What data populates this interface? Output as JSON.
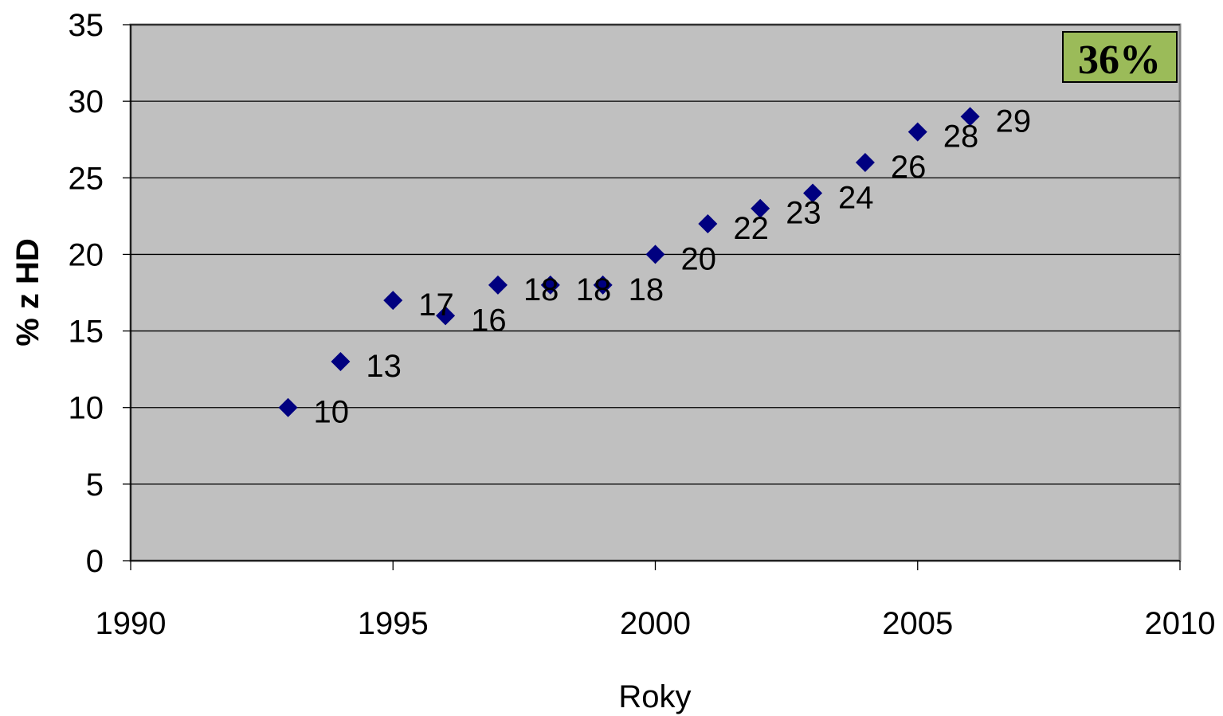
{
  "chart_data": {
    "type": "scatter",
    "title": "",
    "xlabel": "Roky",
    "ylabel": "% z HD",
    "xlim": [
      1990,
      2010
    ],
    "ylim": [
      0,
      35
    ],
    "x_ticks": [
      1990,
      1995,
      2000,
      2005,
      2010
    ],
    "y_ticks": [
      0,
      5,
      10,
      15,
      20,
      25,
      30,
      35
    ],
    "grid": true,
    "legend": "none",
    "series": [
      {
        "x": [
          1993,
          1994,
          1995,
          1996,
          1997,
          1998,
          1999,
          2000,
          2001,
          2002,
          2003,
          2004,
          2005,
          2006
        ],
        "values": [
          10,
          13,
          17,
          16,
          18,
          18,
          18,
          20,
          22,
          23,
          24,
          26,
          28,
          29
        ],
        "labels": [
          "10",
          "13",
          "17",
          "16",
          "18",
          "18",
          "18",
          "20",
          "22",
          "23",
          "24",
          "26",
          "28",
          "29"
        ],
        "marker": "diamond",
        "color": "#000080"
      }
    ],
    "annotation": {
      "text": "36%",
      "position": "top-right",
      "background": "#9BBB59"
    },
    "colors": {
      "plot_background": "#C0C0C0",
      "gridline": "#000000",
      "marker": "#000080"
    }
  }
}
